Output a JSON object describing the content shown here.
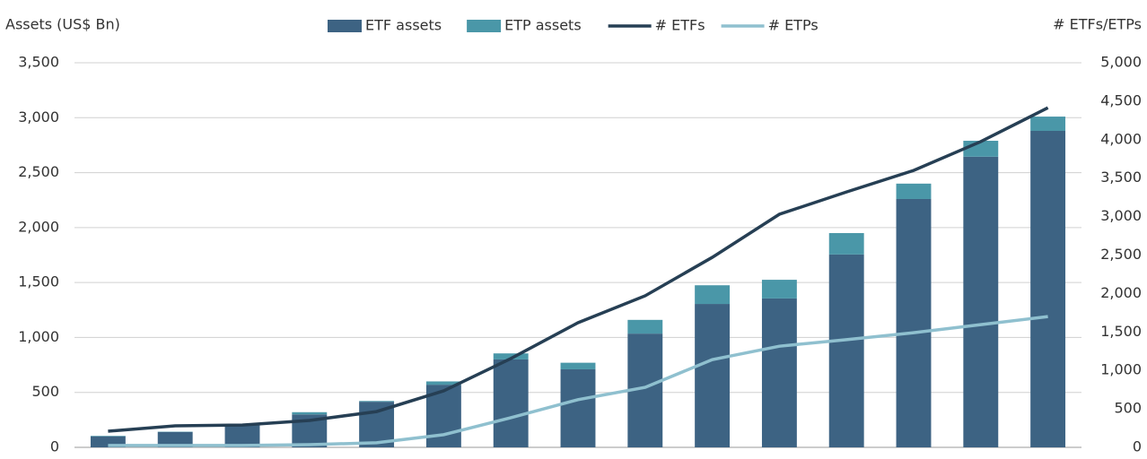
{
  "chart_data": {
    "type": "combo",
    "y_label": "Assets (US$ Bn)",
    "y2_label": "# ETFs/ETPs",
    "categories": [
      null,
      null,
      null,
      null,
      null,
      null,
      null,
      null,
      null,
      null,
      null,
      null,
      null,
      null,
      null
    ],
    "series": [
      {
        "name": "ETF assets",
        "type": "bar",
        "stack": "assets",
        "color": "#3d6383",
        "values": [
          100,
          140,
          200,
          300,
          415,
          570,
          800,
          710,
          1035,
          1305,
          1355,
          1755,
          2260,
          2645,
          2880
        ]
      },
      {
        "name": "ETP assets",
        "type": "bar",
        "stack": "assets",
        "color": "#4a97a8",
        "values": [
          5,
          3,
          2,
          20,
          7,
          30,
          55,
          60,
          125,
          170,
          170,
          195,
          140,
          145,
          130
        ]
      },
      {
        "name": "# ETFs",
        "type": "line",
        "axis": "y2",
        "color": "#263f54",
        "values": [
          210,
          280,
          290,
          350,
          465,
          735,
          1155,
          1620,
          1970,
          2470,
          3030,
          3320,
          3600,
          3975,
          4415
        ]
      },
      {
        "name": "# ETPs",
        "type": "line",
        "axis": "y2",
        "color": "#8fc0cf",
        "values": [
          25,
          25,
          25,
          35,
          60,
          165,
          385,
          620,
          780,
          1140,
          1315,
          1400,
          1490,
          1595,
          1700
        ]
      }
    ],
    "ylim": [
      0,
      3500
    ],
    "yticks": [
      0,
      500,
      {
        "value": 1000,
        "label": "1,000"
      },
      {
        "value": 1500,
        "label": "1,500"
      },
      {
        "value": 2000,
        "label": "2,000"
      },
      {
        "value": 2500,
        "label": "2,500"
      },
      {
        "value": 3000,
        "label": "3,000"
      },
      {
        "value": 3500,
        "label": "3,500"
      }
    ],
    "y2lim": [
      0,
      5000
    ],
    "y2ticks": [
      0,
      500,
      {
        "value": 1000,
        "label": "1,000"
      },
      {
        "value": 1500,
        "label": "1,500"
      },
      {
        "value": 2000,
        "label": "2,000"
      },
      {
        "value": 2500,
        "label": "2,500"
      },
      {
        "value": 3000,
        "label": "3,000"
      },
      {
        "value": 3500,
        "label": "3,500"
      },
      {
        "value": 4000,
        "label": "4,000"
      },
      {
        "value": 4500,
        "label": "4,500"
      },
      {
        "value": 5000,
        "label": "5,000"
      }
    ],
    "grid": true
  }
}
